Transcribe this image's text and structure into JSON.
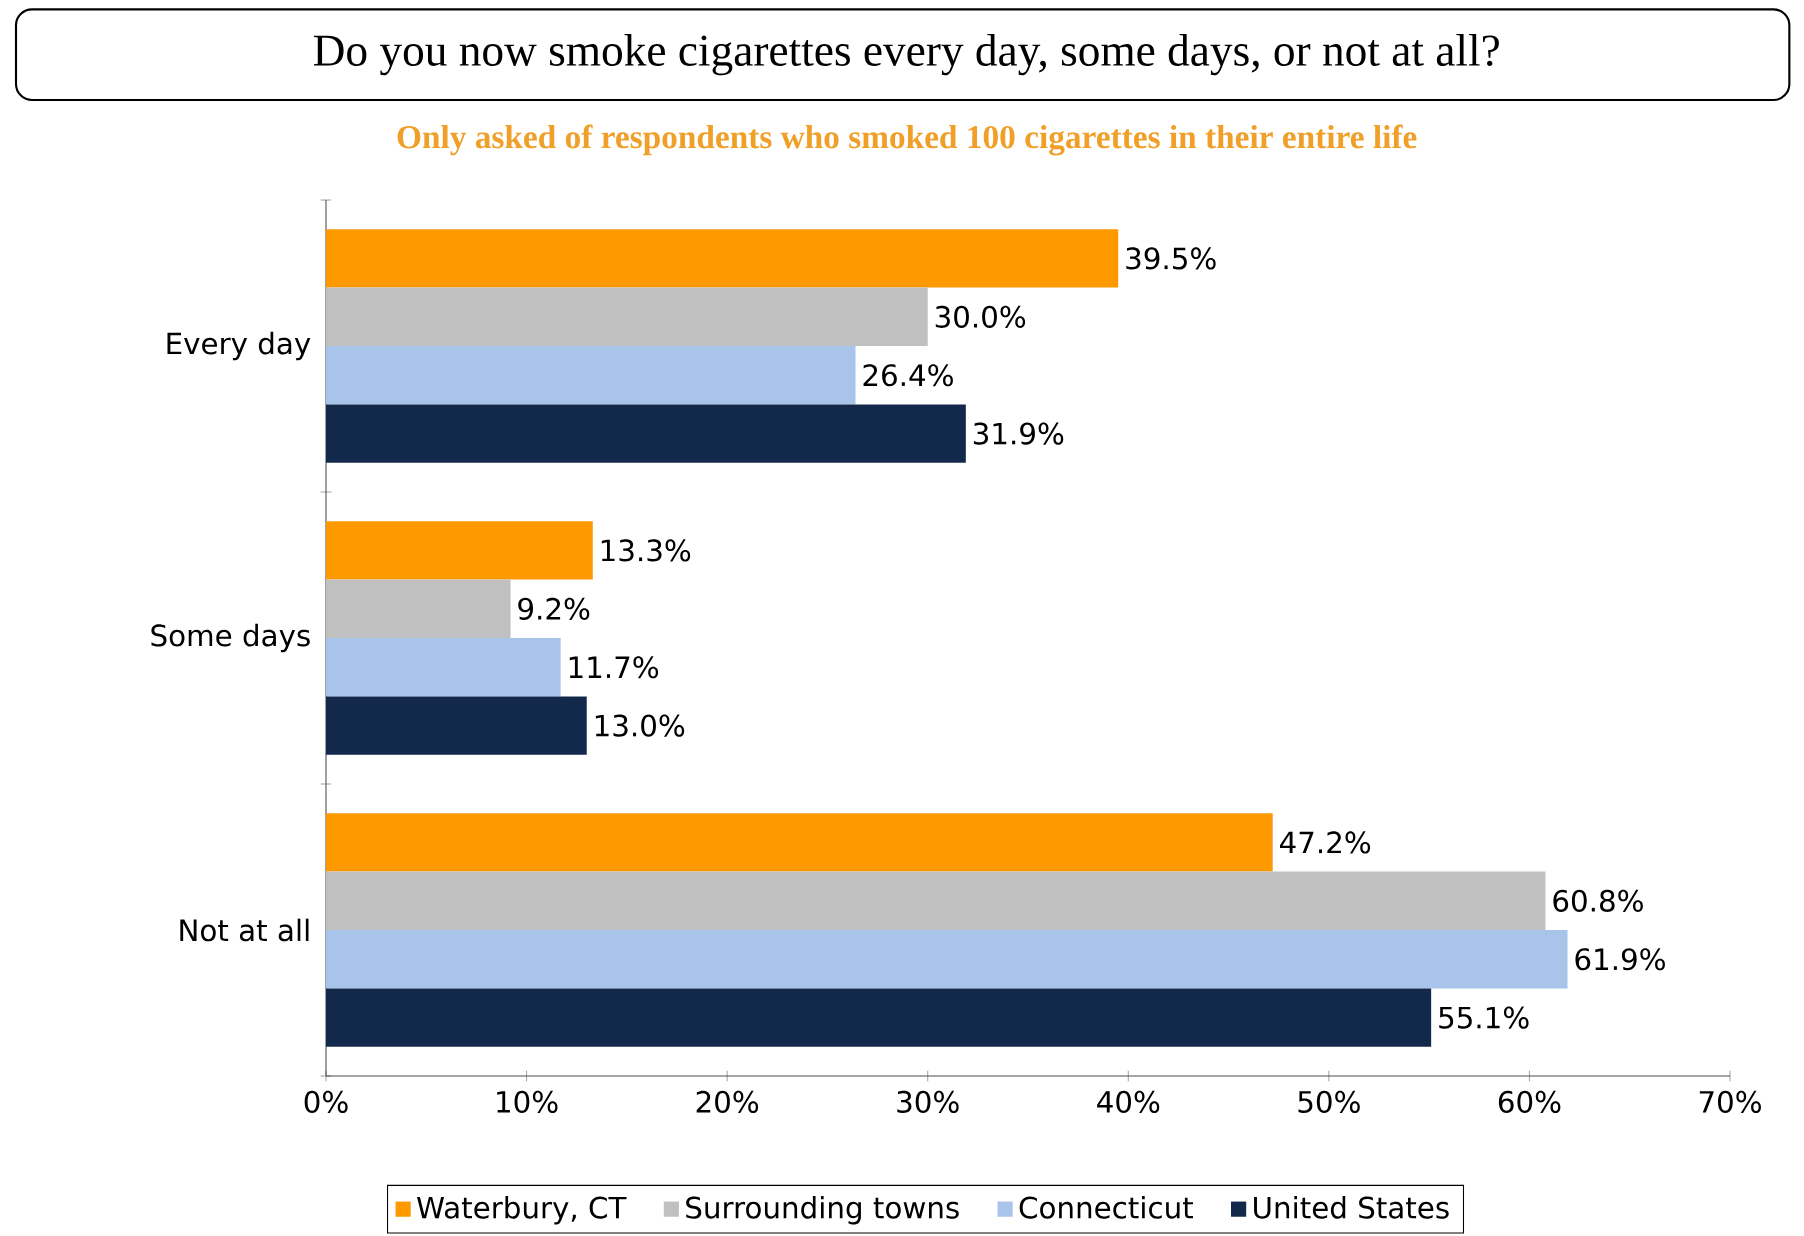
{
  "chart_data": {
    "type": "bar",
    "orientation": "horizontal",
    "title": "Do you now smoke cigarettes every day, some days, or not at all?",
    "subtitle": "Only asked of respondents who smoked 100 cigarettes in their entire life",
    "categories": [
      "Every day",
      "Some days",
      "Not at all"
    ],
    "series": [
      {
        "name": "Waterbury, CT",
        "color": "#ff9900",
        "values": [
          39.5,
          13.3,
          47.2
        ],
        "value_labels": [
          "39.5%",
          "13.3%",
          "47.2%"
        ]
      },
      {
        "name": "Surrounding towns",
        "color": "#c0c0c0",
        "values": [
          30.0,
          9.2,
          60.8
        ],
        "value_labels": [
          "30.0%",
          "9.2%",
          "60.8%"
        ]
      },
      {
        "name": "Connecticut",
        "color": "#a9c4eb",
        "values": [
          26.4,
          11.7,
          61.9
        ],
        "value_labels": [
          "26.4%",
          "11.7%",
          "61.9%"
        ]
      },
      {
        "name": "United States",
        "color": "#13294b",
        "values": [
          31.9,
          13.0,
          55.1
        ],
        "value_labels": [
          "31.9%",
          "13.0%",
          "55.1%"
        ]
      }
    ],
    "xlim": [
      0,
      70
    ],
    "xticks": [
      {
        "value": 0,
        "label": "0%"
      },
      {
        "value": 10,
        "label": "10%"
      },
      {
        "value": 20,
        "label": "20%"
      },
      {
        "value": 30,
        "label": "30%"
      },
      {
        "value": 40,
        "label": "40%"
      },
      {
        "value": 50,
        "label": "50%"
      },
      {
        "value": 60,
        "label": "60%"
      },
      {
        "value": 70,
        "label": "70%"
      }
    ],
    "legend": "bottom"
  }
}
